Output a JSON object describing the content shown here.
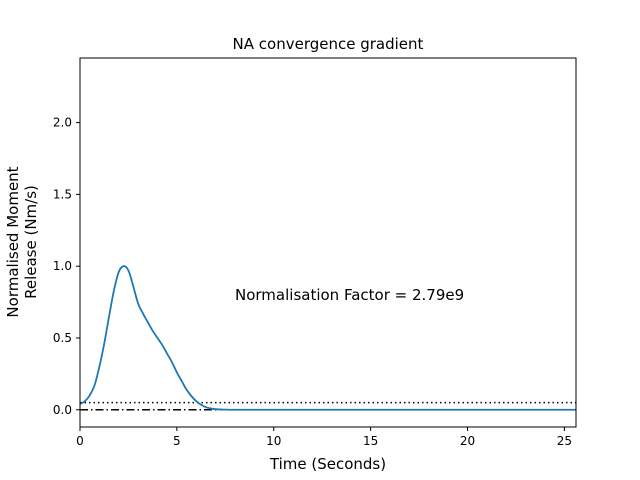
{
  "chart_data": {
    "type": "line",
    "title": "NA convergence gradient",
    "xlabel": "Time (Seconds)",
    "ylabel_lines": [
      "Normalised Moment",
      "Release (Nm/s)"
    ],
    "xlim": [
      0,
      25.6
    ],
    "ylim": [
      -0.12,
      2.45
    ],
    "x_ticks": [
      0,
      5,
      10,
      15,
      20,
      25
    ],
    "x_tick_labels": [
      "0",
      "5",
      "10",
      "15",
      "20",
      "25"
    ],
    "y_ticks": [
      0.0,
      0.5,
      1.0,
      1.5,
      2.0
    ],
    "y_tick_labels": [
      "0.0",
      "0.5",
      "1.0",
      "1.5",
      "2.0"
    ],
    "grid": false,
    "annotation": {
      "text": "Normalisation Factor = 2.79e9",
      "x": 8.0,
      "y": 0.8
    },
    "reference_lines": [
      {
        "y": 0.05,
        "style": "dotted",
        "color": "#000000"
      },
      {
        "y": 0.0,
        "style": "dashdot",
        "color": "#000000"
      }
    ],
    "series": [
      {
        "color": "#1f77b4",
        "x": [
          0.0,
          0.25,
          0.5,
          0.75,
          1.0,
          1.25,
          1.5,
          1.75,
          2.0,
          2.25,
          2.5,
          2.75,
          3.0,
          3.25,
          3.5,
          3.75,
          4.0,
          4.25,
          4.5,
          4.75,
          5.0,
          5.25,
          5.5,
          5.75,
          6.0,
          6.25,
          6.5,
          6.75,
          7.0,
          7.5,
          8.0,
          9.0,
          10.0,
          12.0,
          15.0,
          20.0,
          25.6
        ],
        "y": [
          0.04,
          0.06,
          0.1,
          0.17,
          0.3,
          0.46,
          0.65,
          0.83,
          0.96,
          1.0,
          0.97,
          0.86,
          0.74,
          0.67,
          0.61,
          0.55,
          0.5,
          0.45,
          0.39,
          0.33,
          0.26,
          0.2,
          0.14,
          0.095,
          0.06,
          0.035,
          0.018,
          0.009,
          0.004,
          0.001,
          0.0,
          0.0,
          0.0,
          0.0,
          0.0,
          0.0,
          0.0
        ]
      }
    ]
  }
}
